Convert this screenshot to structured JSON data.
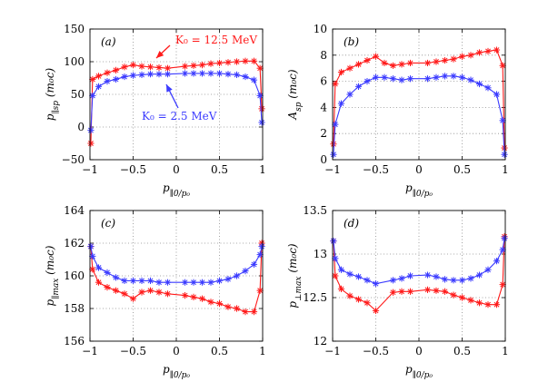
{
  "chart_data": [
    {
      "type": "line",
      "panel_label": "(a)",
      "ylabel": "p_∥sp (m₀c)",
      "xlabel": "p_∥0/p₀",
      "xlim": [
        -1,
        1
      ],
      "ylim": [
        -50,
        150
      ],
      "xticks": [
        "−1",
        "−0.5",
        "0",
        "0.5",
        "1"
      ],
      "yticks": [
        "−50",
        "0",
        "50",
        "100",
        "150"
      ],
      "xtick_values": [
        -1,
        -0.5,
        0,
        0.5,
        1
      ],
      "ytick_values": [
        -50,
        0,
        50,
        100,
        150
      ],
      "grid": true,
      "annotations": [
        {
          "text": "K₀ = 12.5 MeV",
          "color": "#ff1a1a"
        },
        {
          "text": "K₀ = 2.5 MeV",
          "color": "#3b3bff"
        }
      ],
      "series": [
        {
          "name": "K0 = 12.5 MeV",
          "color": "#ff1a1a",
          "x": [
            -0.99,
            -0.97,
            -0.9,
            -0.8,
            -0.7,
            -0.6,
            -0.5,
            -0.4,
            -0.3,
            -0.2,
            -0.1,
            0.1,
            0.2,
            0.3,
            0.4,
            0.5,
            0.6,
            0.7,
            0.8,
            0.9,
            0.97,
            0.99
          ],
          "values": [
            -25,
            73,
            78,
            83,
            87,
            92,
            95,
            93,
            92,
            91,
            90,
            93,
            94,
            95,
            97,
            98,
            99,
            100,
            101,
            101,
            90,
            28
          ]
        },
        {
          "name": "K0 = 2.5 MeV",
          "color": "#3b3bff",
          "x": [
            -0.99,
            -0.97,
            -0.9,
            -0.8,
            -0.7,
            -0.6,
            -0.5,
            -0.4,
            -0.3,
            -0.2,
            -0.1,
            0.1,
            0.2,
            0.3,
            0.4,
            0.5,
            0.6,
            0.7,
            0.8,
            0.9,
            0.97,
            0.99
          ],
          "values": [
            -5,
            48,
            62,
            70,
            73,
            77,
            79,
            80,
            81,
            81,
            81,
            82,
            82,
            82,
            82,
            82,
            81,
            80,
            77,
            72,
            48,
            7
          ]
        }
      ]
    },
    {
      "type": "line",
      "panel_label": "(b)",
      "ylabel": "A_sp (m₀c)",
      "xlabel": "p_∥0/p₀",
      "xlim": [
        -1,
        1
      ],
      "ylim": [
        0,
        10
      ],
      "xticks": [
        "−1",
        "−0.5",
        "0",
        "0.5",
        "1"
      ],
      "yticks": [
        "0",
        "2",
        "4",
        "6",
        "8",
        "10"
      ],
      "xtick_values": [
        -1,
        -0.5,
        0,
        0.5,
        1
      ],
      "ytick_values": [
        0,
        2,
        4,
        6,
        8,
        10
      ],
      "grid": true,
      "series": [
        {
          "name": "K0 = 12.5 MeV",
          "color": "#ff1a1a",
          "x": [
            -0.99,
            -0.97,
            -0.9,
            -0.8,
            -0.7,
            -0.6,
            -0.5,
            -0.4,
            -0.3,
            -0.2,
            -0.1,
            0.1,
            0.2,
            0.3,
            0.4,
            0.5,
            0.6,
            0.7,
            0.8,
            0.9,
            0.97,
            0.99
          ],
          "values": [
            1.2,
            5.8,
            6.7,
            7.0,
            7.3,
            7.6,
            7.9,
            7.4,
            7.2,
            7.3,
            7.4,
            7.4,
            7.5,
            7.6,
            7.7,
            7.9,
            8.0,
            8.2,
            8.3,
            8.4,
            7.2,
            0.9
          ]
        },
        {
          "name": "K0 = 2.5 MeV",
          "color": "#3b3bff",
          "x": [
            -0.99,
            -0.97,
            -0.9,
            -0.8,
            -0.7,
            -0.6,
            -0.5,
            -0.4,
            -0.3,
            -0.2,
            -0.1,
            0.1,
            0.2,
            0.3,
            0.4,
            0.5,
            0.6,
            0.7,
            0.8,
            0.9,
            0.97,
            0.99
          ],
          "values": [
            0.4,
            2.7,
            4.3,
            5.0,
            5.6,
            6.0,
            6.3,
            6.3,
            6.2,
            6.1,
            6.2,
            6.2,
            6.3,
            6.4,
            6.4,
            6.3,
            6.1,
            5.8,
            5.5,
            5.0,
            3.0,
            0.4
          ]
        }
      ]
    },
    {
      "type": "line",
      "panel_label": "(c)",
      "ylabel": "p_∥max (m₀c)",
      "xlabel": "p_∥0/p₀",
      "xlim": [
        -1,
        1
      ],
      "ylim": [
        156,
        164
      ],
      "xticks": [
        "−1",
        "−0.5",
        "0",
        "0.5",
        "1"
      ],
      "yticks": [
        "156",
        "158",
        "160",
        "162",
        "164"
      ],
      "xtick_values": [
        -1,
        -0.5,
        0,
        0.5,
        1
      ],
      "ytick_values": [
        156,
        158,
        160,
        162,
        164
      ],
      "grid": true,
      "series": [
        {
          "name": "K0 = 12.5 MeV",
          "color": "#ff1a1a",
          "x": [
            -0.99,
            -0.97,
            -0.9,
            -0.8,
            -0.7,
            -0.6,
            -0.5,
            -0.4,
            -0.3,
            -0.2,
            -0.1,
            0.1,
            0.2,
            0.3,
            0.4,
            0.5,
            0.6,
            0.7,
            0.8,
            0.9,
            0.97,
            0.99
          ],
          "values": [
            161.8,
            160.4,
            159.6,
            159.3,
            159.1,
            158.9,
            158.6,
            159.0,
            159.1,
            159.0,
            158.9,
            158.8,
            158.7,
            158.6,
            158.4,
            158.3,
            158.1,
            158.0,
            157.8,
            157.8,
            159.1,
            162.0
          ]
        },
        {
          "name": "K0 = 2.5 MeV",
          "color": "#3b3bff",
          "x": [
            -0.99,
            -0.97,
            -0.9,
            -0.8,
            -0.7,
            -0.6,
            -0.5,
            -0.4,
            -0.3,
            -0.2,
            -0.1,
            0.1,
            0.2,
            0.3,
            0.4,
            0.5,
            0.6,
            0.7,
            0.8,
            0.9,
            0.97,
            0.99
          ],
          "values": [
            161.8,
            161.2,
            160.5,
            160.2,
            159.9,
            159.7,
            159.7,
            159.7,
            159.7,
            159.6,
            159.6,
            159.6,
            159.6,
            159.6,
            159.6,
            159.7,
            159.8,
            160.0,
            160.3,
            160.7,
            161.3,
            161.8
          ]
        }
      ]
    },
    {
      "type": "line",
      "panel_label": "(d)",
      "ylabel": "p_⊥max (m₀c)",
      "xlabel": "p_∥0/p₀",
      "xlim": [
        -1,
        1
      ],
      "ylim": [
        12,
        13.5
      ],
      "xticks": [
        "−1",
        "−0.5",
        "0",
        "0.5",
        "1"
      ],
      "yticks": [
        "12",
        "12.5",
        "13",
        "13.5"
      ],
      "xtick_values": [
        -1,
        -0.5,
        0,
        0.5,
        1
      ],
      "ytick_values": [
        12,
        12.5,
        13,
        13.5
      ],
      "grid": true,
      "series": [
        {
          "name": "K0 = 12.5 MeV",
          "color": "#ff1a1a",
          "x": [
            -0.99,
            -0.97,
            -0.9,
            -0.8,
            -0.7,
            -0.6,
            -0.5,
            -0.3,
            -0.2,
            -0.1,
            0.1,
            0.2,
            0.3,
            0.4,
            0.5,
            0.6,
            0.7,
            0.8,
            0.9,
            0.97,
            0.99
          ],
          "values": [
            13.15,
            12.75,
            12.6,
            12.52,
            12.48,
            12.44,
            12.35,
            12.56,
            12.57,
            12.57,
            12.59,
            12.58,
            12.57,
            12.53,
            12.5,
            12.47,
            12.44,
            12.42,
            12.42,
            12.65,
            13.2
          ]
        },
        {
          "name": "K0 = 2.5 MeV",
          "color": "#3b3bff",
          "x": [
            -0.99,
            -0.97,
            -0.9,
            -0.8,
            -0.7,
            -0.6,
            -0.5,
            -0.3,
            -0.2,
            -0.1,
            0.1,
            0.2,
            0.3,
            0.4,
            0.5,
            0.6,
            0.7,
            0.8,
            0.9,
            0.97,
            0.99
          ],
          "values": [
            13.15,
            12.95,
            12.82,
            12.77,
            12.74,
            12.7,
            12.66,
            12.7,
            12.72,
            12.75,
            12.76,
            12.74,
            12.71,
            12.7,
            12.7,
            12.72,
            12.76,
            12.82,
            12.92,
            13.05,
            13.18
          ]
        }
      ]
    }
  ]
}
